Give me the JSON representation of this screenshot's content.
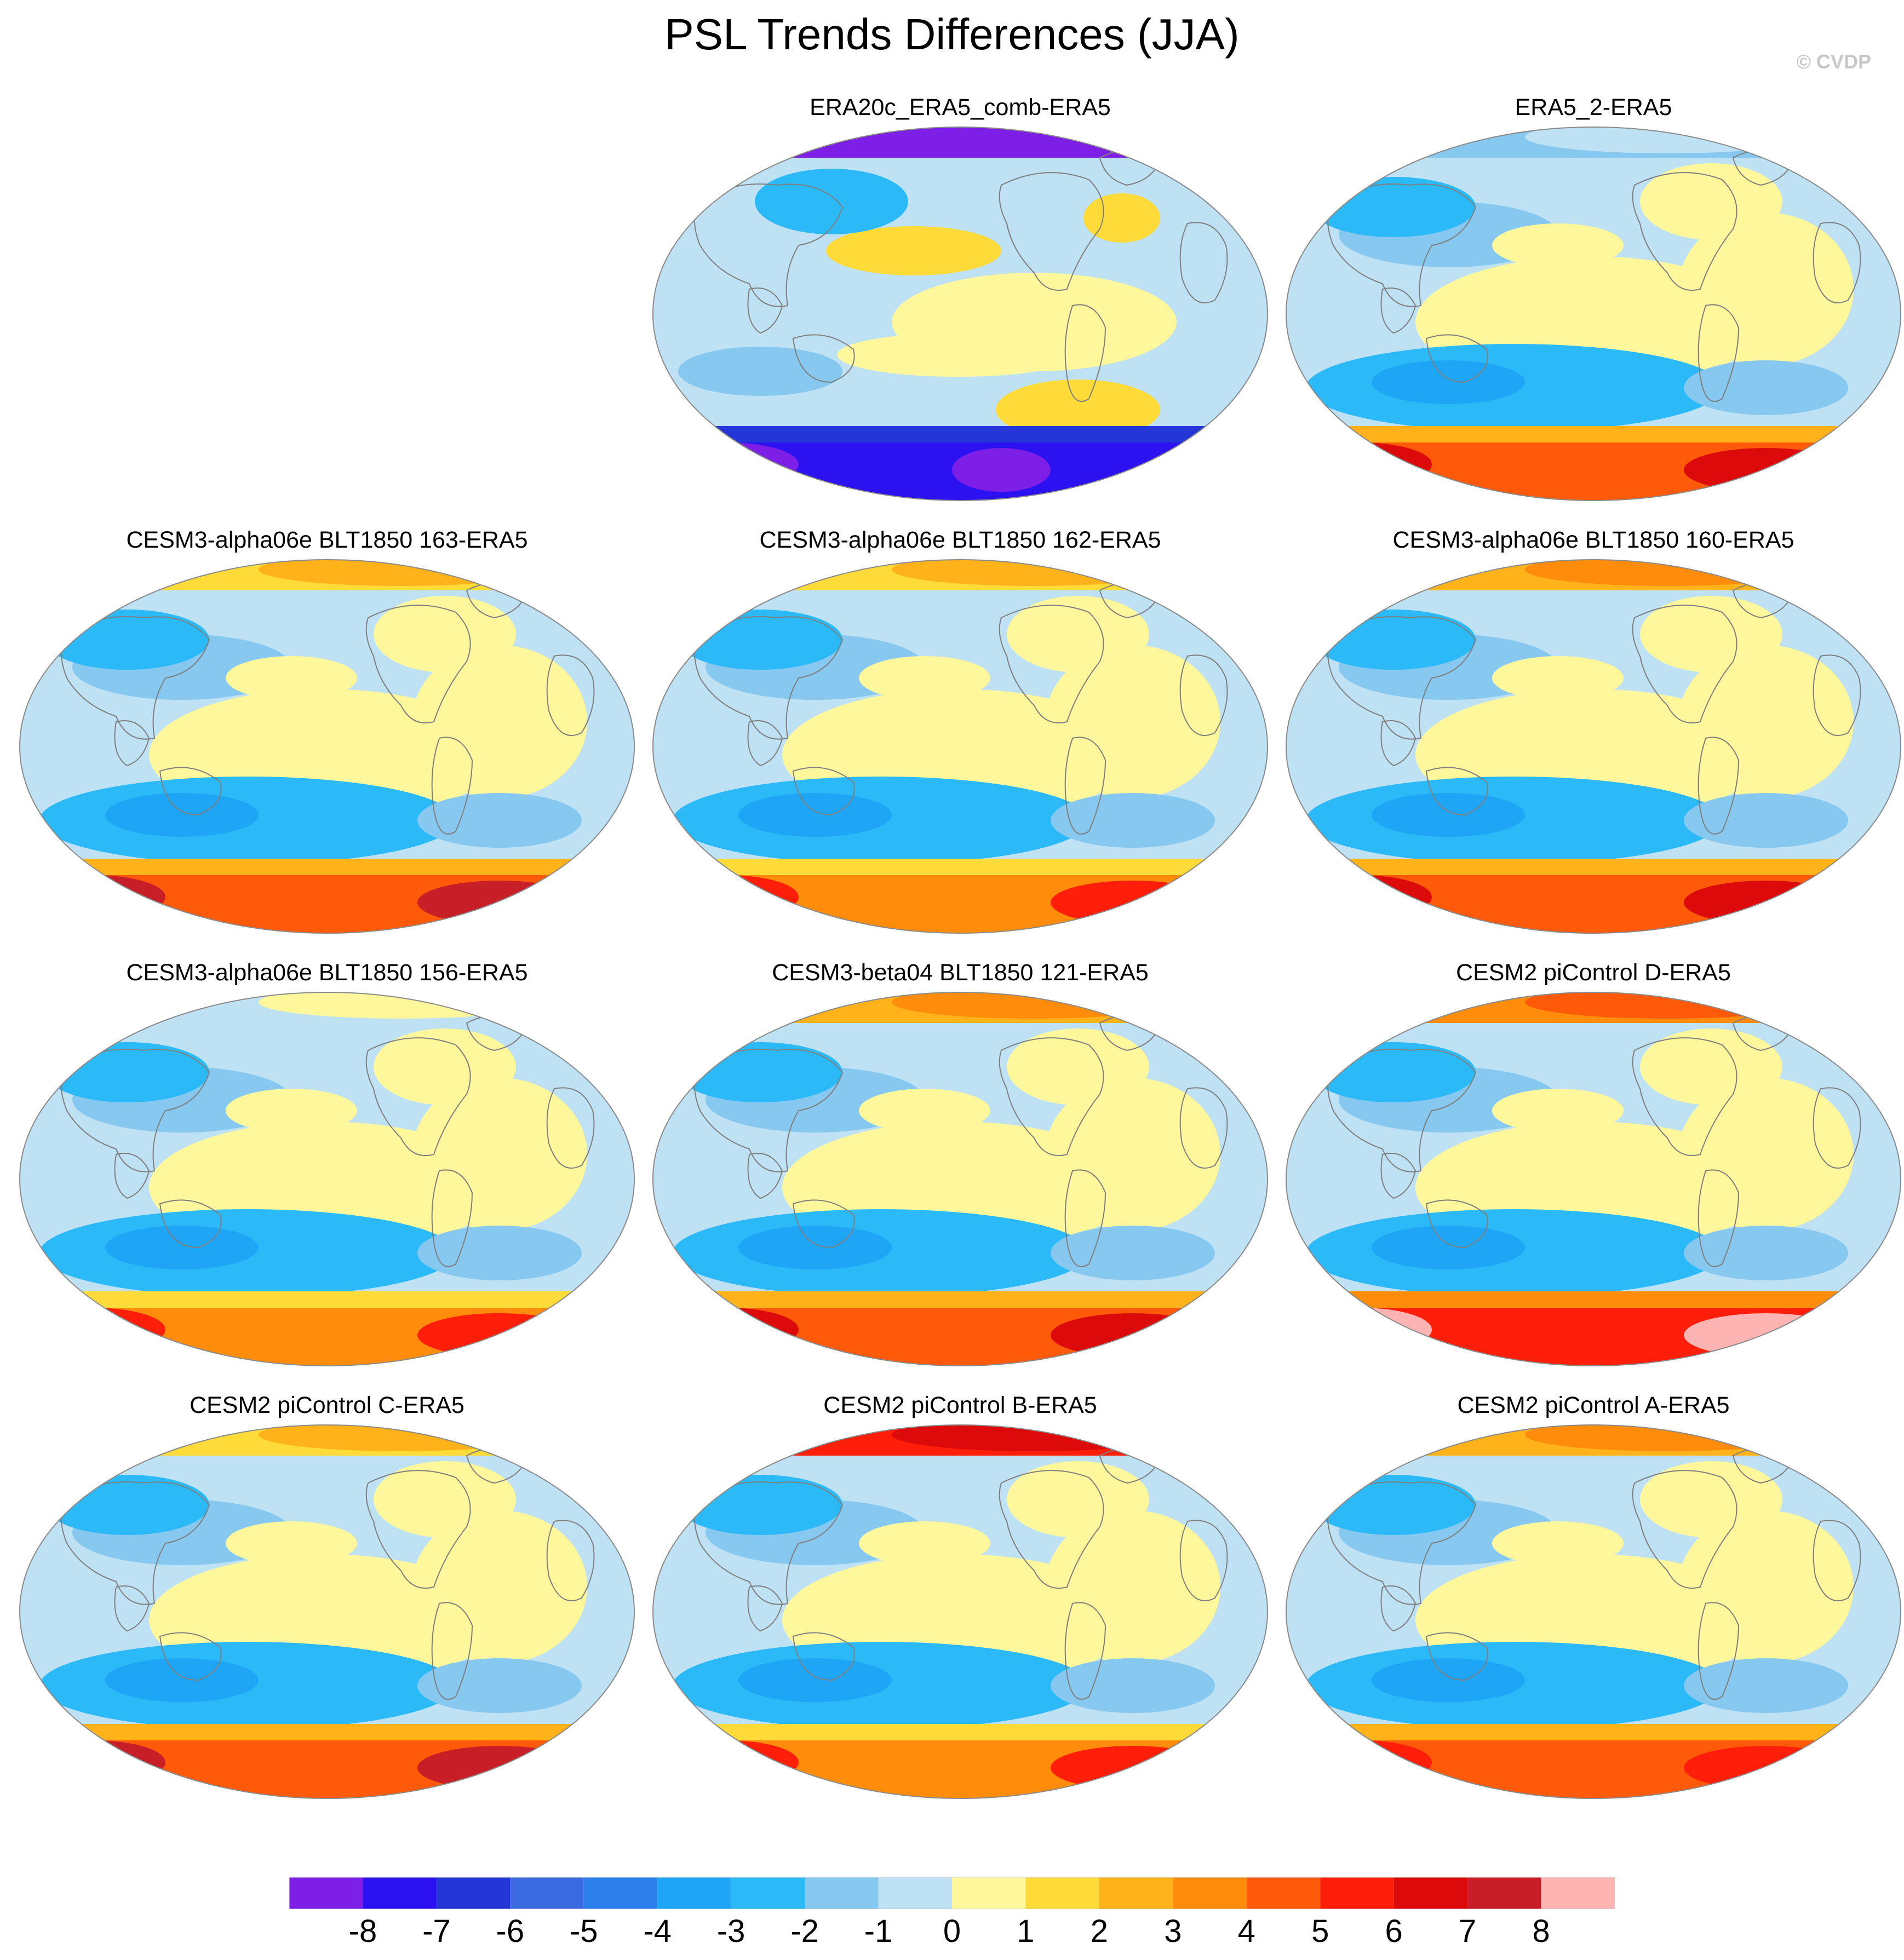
{
  "title": "PSL Trends Differences (JJA)",
  "credit": "© CVDP",
  "colors": {
    "levels": [
      "#7d1fe6",
      "#2c12f0",
      "#2437d6",
      "#3b6ae0",
      "#2d7fec",
      "#1ea5f5",
      "#2bbaf7",
      "#86c8ef",
      "#bfe1f4",
      "#fff79c",
      "#ffdb3a",
      "#ffb21a",
      "#ff8c0a",
      "#ff5a0a",
      "#ff1e0a",
      "#dc0a0a",
      "#c81e28",
      "#ffb4b4"
    ],
    "land_outline": "#7f7f7f"
  },
  "colorbar": {
    "labels": [
      "-8",
      "-7",
      "-6",
      "-5",
      "-4",
      "-3",
      "-2",
      "-1",
      "0",
      "1",
      "2",
      "3",
      "4",
      "5",
      "6",
      "7",
      "8"
    ]
  },
  "panels": [
    {
      "title": "ERA20c_ERA5_comb-ERA5",
      "north_band": 0,
      "south_band": 1,
      "south_core": 0
    },
    {
      "title": "ERA5_2-ERA5",
      "north_band": 7,
      "south_band": 13,
      "south_core": 15
    },
    {
      "title": "CESM3-alpha06e BLT1850 163-ERA5",
      "north_band": 10,
      "south_band": 13,
      "south_core": 16
    },
    {
      "title": "CESM3-alpha06e BLT1850 162-ERA5",
      "north_band": 10,
      "south_band": 12,
      "south_core": 14
    },
    {
      "title": "CESM3-alpha06e BLT1850 160-ERA5",
      "north_band": 11,
      "south_band": 13,
      "south_core": 15
    },
    {
      "title": "CESM3-alpha06e BLT1850 156-ERA5",
      "north_band": 8,
      "south_band": 12,
      "south_core": 14
    },
    {
      "title": "CESM3-beta04 BLT1850 121-ERA5",
      "north_band": 11,
      "south_band": 13,
      "south_core": 15
    },
    {
      "title": "CESM2 piControl D-ERA5",
      "north_band": 12,
      "south_band": 14,
      "south_core": 17
    },
    {
      "title": "CESM2 piControl C-ERA5",
      "north_band": 10,
      "south_band": 13,
      "south_core": 16
    },
    {
      "title": "CESM2 piControl B-ERA5",
      "north_band": 14,
      "south_band": 12,
      "south_core": 14
    },
    {
      "title": "CESM2 piControl A-ERA5",
      "north_band": 11,
      "south_band": 13,
      "south_core": 14
    }
  ]
}
